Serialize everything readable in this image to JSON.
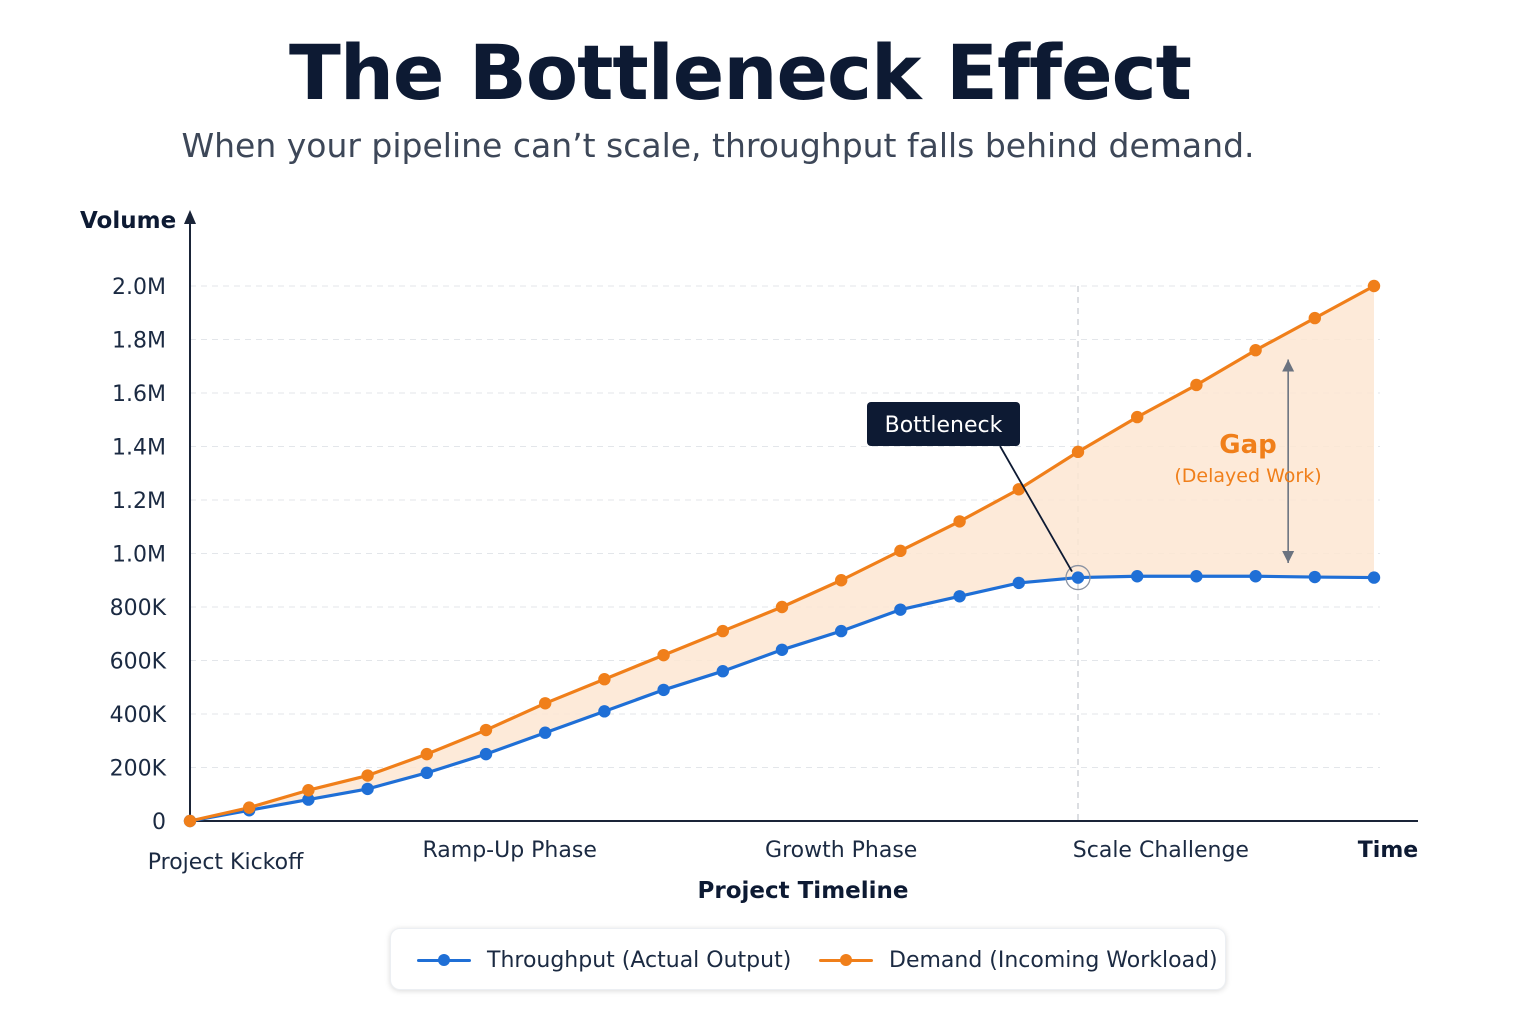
{
  "header": {
    "title": "The Bottleneck Effect",
    "subtitle": "When your pipeline can’t scale, throughput falls behind demand."
  },
  "colors": {
    "throughput": "#1f6fd6",
    "demand": "#f07f1a",
    "gap_fill": "#fde6d2",
    "axis": "#1a2438",
    "grid": "#e3e6ea",
    "callout_bg": "#0d1a33"
  },
  "chart_data": {
    "type": "line",
    "xlabel": "Project Timeline",
    "ylabel": "Volume",
    "x_axis_end_label": "Time",
    "x": [
      0,
      1,
      2,
      3,
      4,
      5,
      6,
      7,
      8,
      9,
      10,
      11,
      12,
      13,
      14,
      15,
      16,
      17,
      18,
      19,
      20
    ],
    "phase_labels": [
      {
        "label": "Project Kickoff",
        "x": 0.6
      },
      {
        "label": "Ramp-Up Phase",
        "x": 5.4
      },
      {
        "label": "Growth Phase",
        "x": 11.0
      },
      {
        "label": "Scale Challenge",
        "x": 16.4
      }
    ],
    "y_ticks": [
      "0",
      "200K",
      "400K",
      "600K",
      "800K",
      "1.0M",
      "1.2M",
      "1.4M",
      "1.6M",
      "1.8M",
      "2.0M"
    ],
    "y_tick_values": [
      0,
      200000,
      400000,
      600000,
      800000,
      1000000,
      1200000,
      1400000,
      1600000,
      1800000,
      2000000
    ],
    "ylim": [
      0,
      2000000
    ],
    "grid": true,
    "legend_position": "bottom",
    "series": [
      {
        "name": "Throughput (Actual Output)",
        "color": "#1f6fd6",
        "values": [
          0,
          40000,
          80000,
          120000,
          180000,
          250000,
          330000,
          410000,
          490000,
          560000,
          640000,
          710000,
          790000,
          840000,
          890000,
          910000,
          915000,
          915000,
          915000,
          912000,
          910000
        ]
      },
      {
        "name": "Demand (Incoming Workload)",
        "color": "#f07f1a",
        "values": [
          0,
          50000,
          115000,
          170000,
          250000,
          340000,
          440000,
          530000,
          620000,
          710000,
          800000,
          900000,
          1010000,
          1120000,
          1240000,
          1380000,
          1510000,
          1630000,
          1760000,
          1880000,
          2000000
        ]
      }
    ],
    "annotations": {
      "bottleneck": {
        "label": "Bottleneck",
        "x": 15
      },
      "gap": {
        "label": "Gap",
        "sublabel": "(Delayed Work)",
        "x": 19
      }
    }
  }
}
